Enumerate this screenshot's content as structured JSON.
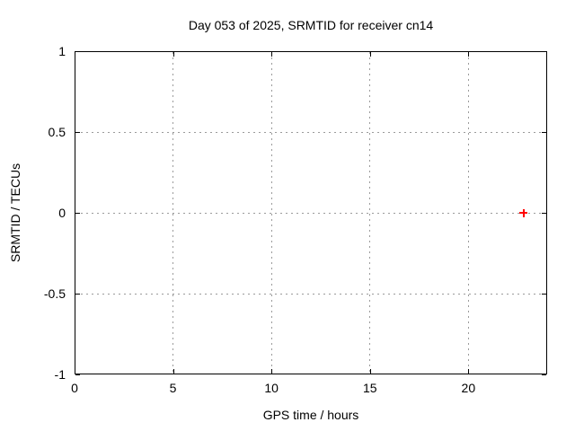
{
  "chart_data": {
    "type": "scatter",
    "title": "Day 053 of 2025, SRMTID for receiver cn14",
    "xlabel": "GPS time / hours",
    "ylabel": "SRMTID / TECUs",
    "xlim": [
      0,
      24
    ],
    "ylim": [
      -1,
      1
    ],
    "xticks": {
      "values": [
        0,
        5,
        10,
        15,
        20
      ],
      "labels": [
        "0",
        "5",
        "10",
        "15",
        "20"
      ]
    },
    "yticks": {
      "values": [
        1,
        0.5,
        0,
        -0.5,
        -1
      ],
      "labels": [
        "1",
        "0.5",
        "0",
        "-0.5",
        "-1"
      ]
    },
    "grid": true,
    "legend": "none",
    "series": [
      {
        "name": "SRMTID",
        "marker": "plus",
        "color": "#ff0000",
        "points": [
          {
            "x": 22.8,
            "y": 0.0
          }
        ]
      }
    ],
    "colors": {
      "axis": "#000000",
      "grid": "#9b9b9b",
      "background": "#ffffff"
    }
  }
}
